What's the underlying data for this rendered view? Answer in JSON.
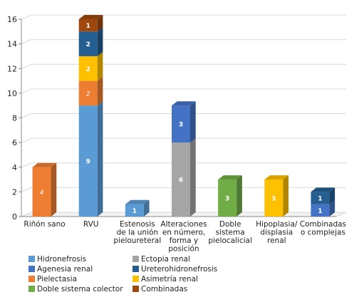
{
  "chart_data": {
    "type": "bar",
    "stacked": true,
    "three_d": true,
    "grid": true,
    "legend_position": "bottom",
    "ylim": [
      0,
      16
    ],
    "yticks": [
      0,
      2,
      4,
      6,
      8,
      10,
      12,
      14,
      16
    ],
    "categories": [
      [
        "Riñón sano"
      ],
      [
        "RVU"
      ],
      [
        "Estenosis",
        "de la unión",
        "pieloureteral"
      ],
      [
        "Alteraciones",
        "en número,",
        "forma y",
        "posición"
      ],
      [
        "Doble",
        "sistema",
        "pielocalicial"
      ],
      [
        "Hipoplasia/",
        "displasia",
        "renal"
      ],
      [
        "Combinadas",
        "o complejas"
      ]
    ],
    "series": [
      {
        "name": "Hidronefrosis",
        "color": "#5B9BD5",
        "values": [
          0,
          9,
          1,
          0,
          0,
          0,
          0
        ]
      },
      {
        "name": "Agenesia renal",
        "color": "#4472C4",
        "values": [
          0,
          0,
          0,
          3,
          0,
          0,
          1
        ]
      },
      {
        "name": "Pielectasia",
        "color": "#ED7D31",
        "values": [
          4,
          2,
          0,
          0,
          0,
          0,
          0
        ]
      },
      {
        "name": "Doble sistema colector",
        "color": "#70AD47",
        "values": [
          0,
          0,
          0,
          0,
          3,
          0,
          0
        ]
      },
      {
        "name": "Ectopia renal",
        "color": "#A5A5A5",
        "values": [
          0,
          0,
          0,
          6,
          0,
          0,
          0
        ]
      },
      {
        "name": "Ureterohidronefrosis",
        "color": "#255E91",
        "values": [
          0,
          2,
          0,
          0,
          0,
          0,
          1
        ]
      },
      {
        "name": "Asimetría renal",
        "color": "#FFC000",
        "values": [
          0,
          2,
          0,
          0,
          0,
          3,
          0
        ]
      },
      {
        "name": "Combinadas",
        "color": "#9E480E",
        "values": [
          0,
          1,
          0,
          0,
          0,
          0,
          0
        ]
      }
    ],
    "stack_order": [
      [
        2
      ],
      [
        0,
        2,
        6,
        5,
        7
      ],
      [
        0
      ],
      [
        4,
        1
      ],
      [
        3
      ],
      [
        6
      ],
      [
        1,
        5
      ]
    ],
    "italic_labels": [
      [
        0,
        2
      ],
      [
        1,
        2
      ]
    ],
    "legend_columns": [
      [
        0,
        1,
        2,
        3
      ],
      [
        4,
        5,
        6,
        7
      ]
    ]
  }
}
